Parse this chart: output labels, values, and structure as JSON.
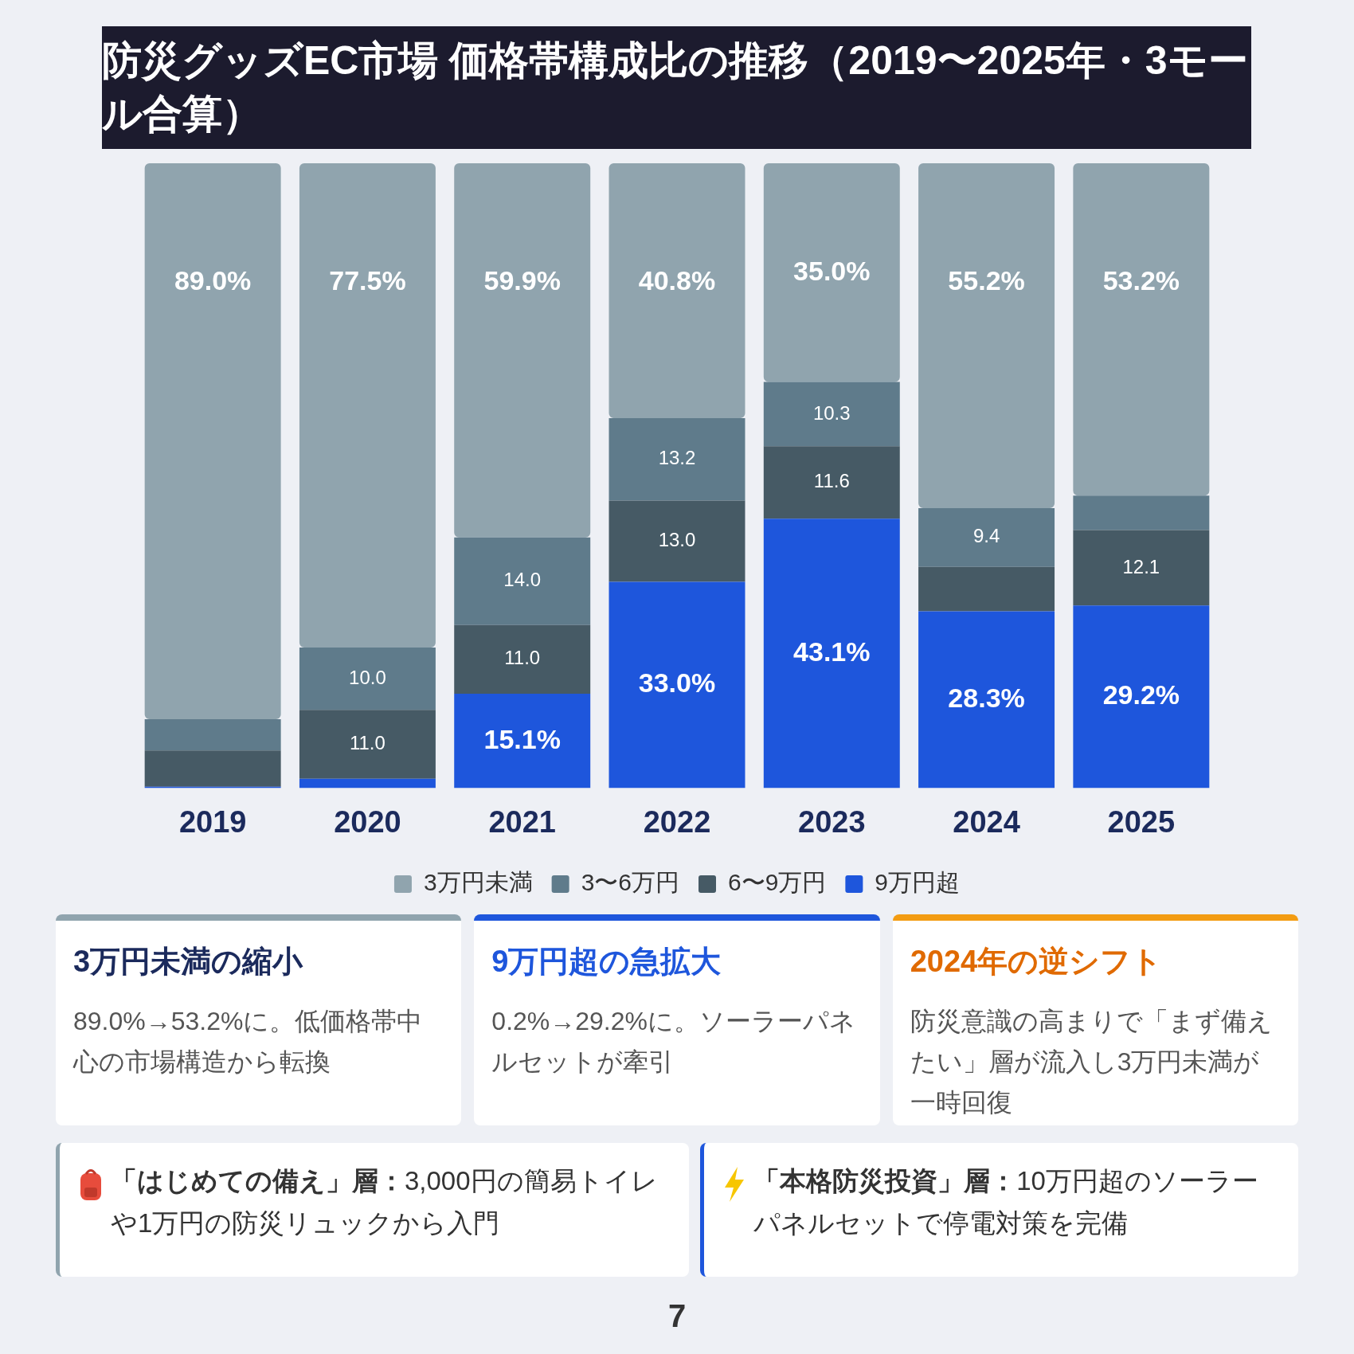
{
  "chart_data": {
    "type": "bar",
    "title": "防災グッズEC市場 価格帯構成比の推移（2019〜2025年・3モール合算）",
    "categories": [
      "2019",
      "2020",
      "2021",
      "2022",
      "2023",
      "2024",
      "2025"
    ],
    "stacked": true,
    "ylim": [
      0,
      100
    ],
    "tick_labels": "x",
    "grid": false,
    "legend": "bottom",
    "series": [
      {
        "name": "9万円超",
        "color": "#1e56dc",
        "values": [
          0.2,
          1.5,
          15.1,
          33.0,
          43.1,
          28.3,
          29.2
        ],
        "value_labels": [
          null,
          null,
          "15.1%",
          "33.0%",
          "43.1%",
          "28.3%",
          "29.2%"
        ]
      },
      {
        "name": "6〜9万円",
        "color": "#465a65",
        "values": [
          5.8,
          11.0,
          11.0,
          13.0,
          11.6,
          7.1,
          12.1
        ],
        "value_labels": [
          null,
          "11.0",
          "11.0",
          "13.0",
          "11.6",
          null,
          "12.1"
        ]
      },
      {
        "name": "3〜6万円",
        "color": "#5f7b8b",
        "values": [
          5.0,
          10.0,
          14.0,
          13.2,
          10.3,
          9.4,
          5.5
        ],
        "value_labels": [
          null,
          "10.0",
          "14.0",
          "13.2",
          "10.3",
          "9.4",
          null
        ]
      },
      {
        "name": "3万円未満",
        "color": "#90a4ae",
        "values": [
          89.0,
          77.5,
          59.9,
          40.8,
          35.0,
          55.2,
          53.2
        ],
        "value_labels": [
          "89.0%",
          "77.5%",
          "59.9%",
          "40.8%",
          "35.0%",
          "55.2%",
          "53.2%"
        ]
      }
    ],
    "annotations": [
      "3万円未満の縮小",
      "89.0%→53.2%に。低価格帯中心の市場構造から転換",
      "9万円超の急拡大",
      "0.2%→29.2%に。ソーラーパネルセットが牽引",
      "2024年の逆シフト",
      "防災意識の高まりで「まず備えたい」層が流入し3万円未満が一時回復",
      "「はじめての備え」層：3,000円の簡易トイレや1万円の防災リュックから入門",
      "「本格防災投資」層：10万円超のソーラーパネルセットで停電対策を完備",
      "7"
    ]
  }
}
